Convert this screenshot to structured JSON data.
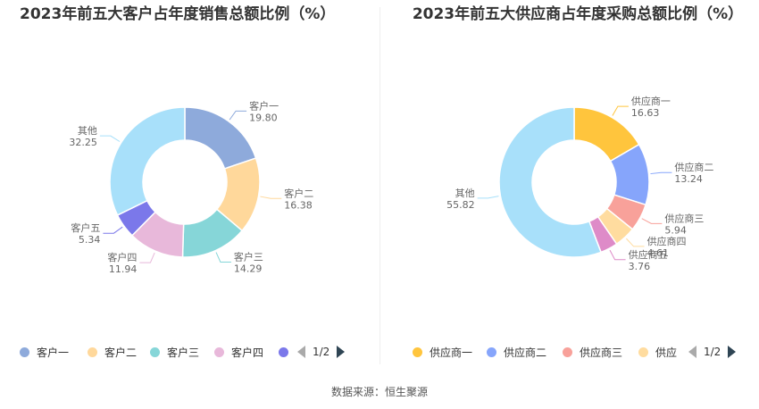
{
  "chart_data": [
    {
      "type": "pie",
      "title": "2023年前五大客户占年度销售总额比例（%）",
      "slices": [
        {
          "label": "客户一",
          "value": 19.8,
          "value_text": "19.80",
          "color": "#8eaadb"
        },
        {
          "label": "客户二",
          "value": 16.38,
          "value_text": "16.38",
          "color": "#ffd89b"
        },
        {
          "label": "客户三",
          "value": 14.29,
          "value_text": "14.29",
          "color": "#86d6d8"
        },
        {
          "label": "客户四",
          "value": 11.94,
          "value_text": "11.94",
          "color": "#e8b8da"
        },
        {
          "label": "客户五",
          "value": 5.34,
          "value_text": "5.34",
          "color": "#7b78ea"
        },
        {
          "label": "其他",
          "value": 32.25,
          "value_text": "32.25",
          "color": "#a8e0fa"
        }
      ],
      "legend": {
        "placement": "bottom",
        "visible_items": [
          "客户一",
          "客户二",
          "客户三",
          "客户四",
          ""
        ],
        "page": "1/2"
      }
    },
    {
      "type": "pie",
      "title": "2023年前五大供应商占年度采购总额比例（%）",
      "slices": [
        {
          "label": "供应商一",
          "value": 16.63,
          "value_text": "16.63",
          "color": "#ffc53d"
        },
        {
          "label": "供应商二",
          "value": 13.24,
          "value_text": "13.24",
          "color": "#86a5fb"
        },
        {
          "label": "供应商三",
          "value": 5.94,
          "value_text": "5.94",
          "color": "#f8a19a"
        },
        {
          "label": "供应商四",
          "value": 4.61,
          "value_text": "4.61",
          "color": "#ffdc9f"
        },
        {
          "label": "供应商五",
          "value": 3.76,
          "value_text": "3.76",
          "color": "#de8bc8"
        },
        {
          "label": "其他",
          "value": 55.82,
          "value_text": "55.82",
          "color": "#a8e0fa"
        }
      ],
      "legend": {
        "placement": "bottom",
        "visible_items": [
          "供应商一",
          "供应商二",
          "供应商三",
          "供应"
        ],
        "page": "1/2"
      }
    }
  ],
  "footer": {
    "source": "数据来源：恒生聚源"
  }
}
